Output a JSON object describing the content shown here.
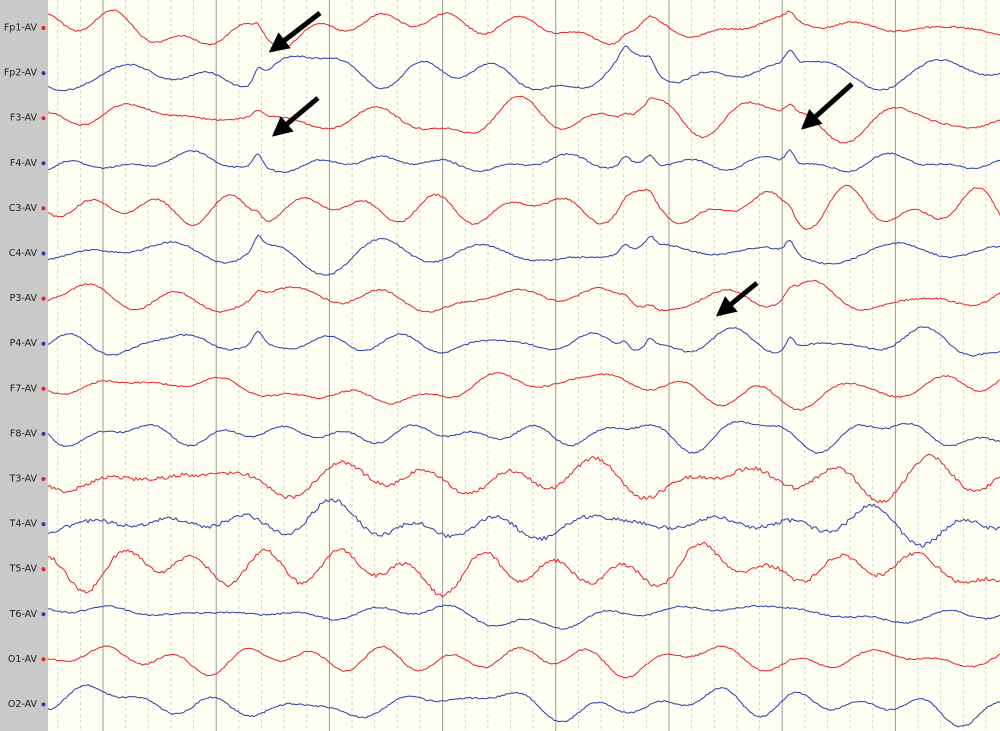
{
  "channels": [
    {
      "label": "Fp1-AV",
      "color": "#e8202a"
    },
    {
      "label": "Fp2-AV",
      "color": "#2b3ea8"
    },
    {
      "label": "F3-AV",
      "color": "#e8202a"
    },
    {
      "label": "F4-AV",
      "color": "#2b3ea8"
    },
    {
      "label": "C3-AV",
      "color": "#e8202a"
    },
    {
      "label": "C4-AV",
      "color": "#2b3ea8"
    },
    {
      "label": "P3-AV",
      "color": "#e8202a"
    },
    {
      "label": "P4-AV",
      "color": "#2b3ea8"
    },
    {
      "label": "F7-AV",
      "color": "#e8202a"
    },
    {
      "label": "F8-AV",
      "color": "#2b3ea8"
    },
    {
      "label": "T3-AV",
      "color": "#e8202a"
    },
    {
      "label": "T4-AV",
      "color": "#2b3ea8"
    },
    {
      "label": "T5-AV",
      "color": "#e8202a"
    },
    {
      "label": "T6-AV",
      "color": "#2b3ea8"
    },
    {
      "label": "O1-AV",
      "color": "#e8202a"
    },
    {
      "label": "O2-AV",
      "color": "#2b3ea8"
    }
  ]
}
